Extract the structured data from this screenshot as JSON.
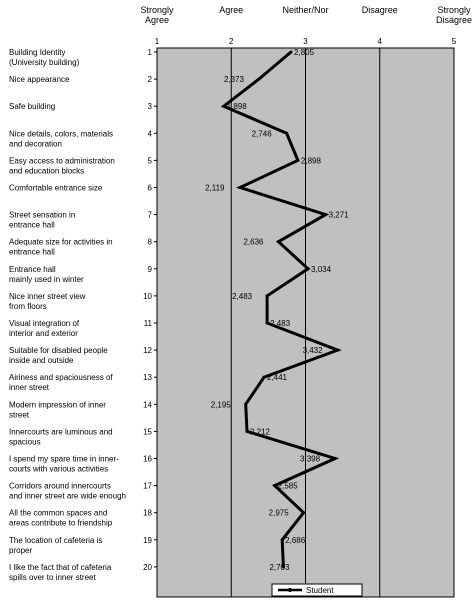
{
  "chart_data": {
    "type": "line",
    "title": "",
    "xlabel": "",
    "ylabel": "",
    "xlim": [
      1,
      5
    ],
    "x_ticks": [
      1,
      2,
      3,
      4,
      5
    ],
    "scale_labels": [
      {
        "value": 1,
        "lines": [
          "Strongly",
          "Agree"
        ]
      },
      {
        "value": 2,
        "lines": [
          "Agree"
        ]
      },
      {
        "value": 3,
        "lines": [
          "Neither/Nor"
        ]
      },
      {
        "value": 4,
        "lines": [
          "Disagree"
        ]
      },
      {
        "value": 5,
        "lines": [
          "Strongly",
          "Disagree"
        ]
      }
    ],
    "items": [
      {
        "index": 1,
        "lines": [
          "Building Identity",
          "(University building)"
        ]
      },
      {
        "index": 2,
        "lines": [
          "Nice appearance"
        ]
      },
      {
        "index": 3,
        "lines": [
          "Safe building"
        ]
      },
      {
        "index": 4,
        "lines": [
          "Nice details, colors, materials",
          "and decoration"
        ]
      },
      {
        "index": 5,
        "lines": [
          "Easy access to administration",
          "and education blocks"
        ]
      },
      {
        "index": 6,
        "lines": [
          "Comfortable entrance size"
        ]
      },
      {
        "index": 7,
        "lines": [
          "Street sensation in",
          "entrance hall"
        ]
      },
      {
        "index": 8,
        "lines": [
          "Adequate size for activities in",
          "entrance hall"
        ]
      },
      {
        "index": 9,
        "lines": [
          "Entrance hall",
          "mainly used in winter"
        ]
      },
      {
        "index": 10,
        "lines": [
          "Nice inner street view",
          "from floors"
        ]
      },
      {
        "index": 11,
        "lines": [
          "Visual integration of",
          "interior and exterior"
        ]
      },
      {
        "index": 12,
        "lines": [
          "Suitable for disabled people",
          "inside and outside"
        ]
      },
      {
        "index": 13,
        "lines": [
          "Airiness and spaciousness of",
          "inner street"
        ]
      },
      {
        "index": 14,
        "lines": [
          "Modern impression of inner",
          "street"
        ]
      },
      {
        "index": 15,
        "lines": [
          "Innercourts are luminous and",
          "spacious"
        ]
      },
      {
        "index": 16,
        "lines": [
          "I spend my spare time in inner-",
          "courts with various activities"
        ]
      },
      {
        "index": 17,
        "lines": [
          "Corridors around innercourts",
          "and inner street are wide enough"
        ]
      },
      {
        "index": 18,
        "lines": [
          "All the common spaces and",
          "areas contribute to friendship"
        ]
      },
      {
        "index": 19,
        "lines": [
          "The location of cafeteria is",
          "proper"
        ]
      },
      {
        "index": 20,
        "lines": [
          "I like the fact that of cafeteria",
          "spills over to inner street"
        ]
      }
    ],
    "series": [
      {
        "name": "Student",
        "color": "#000000",
        "values": [
          2.805,
          2.373,
          1.898,
          2.746,
          2.898,
          2.119,
          3.271,
          2.636,
          3.034,
          2.483,
          2.483,
          3.432,
          2.441,
          2.195,
          2.212,
          3.398,
          2.585,
          2.975,
          2.686,
          2.703
        ],
        "value_labels": [
          "2,805",
          "2,373",
          "1,898",
          "2,746",
          "2,898",
          "2,119",
          "3,271",
          "2,636",
          "3,034",
          "2,483",
          "2,483",
          "3,432",
          "2,441",
          "2,195",
          "2,212",
          "3,398",
          "2,585",
          "2,975",
          "2,686",
          "2,703"
        ]
      }
    ],
    "legend": {
      "position": "bottom-right",
      "label": "Student"
    },
    "grid": true,
    "plot_background": "#c0c0c0"
  }
}
